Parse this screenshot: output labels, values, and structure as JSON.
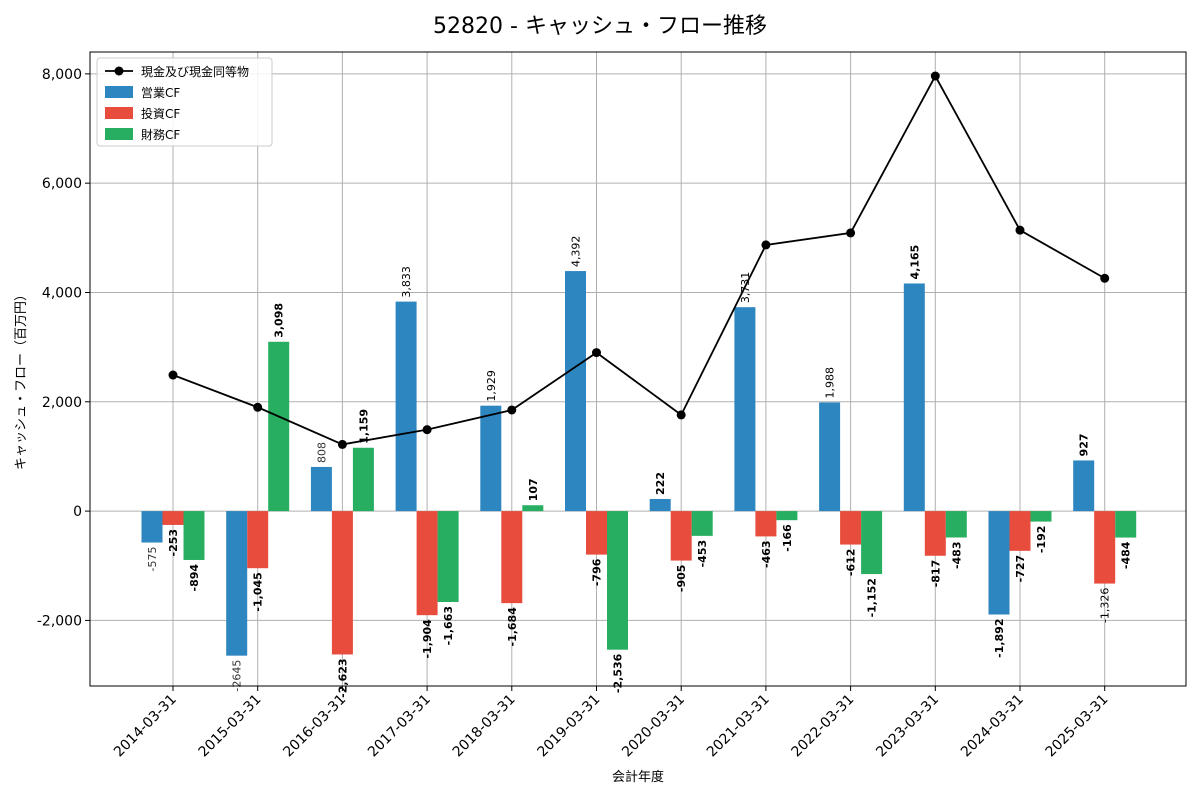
{
  "chart_data": {
    "type": "bar",
    "title": "52820 - キャッシュ・フロー推移",
    "xlabel": "会計年度",
    "ylabel": "キャッシュ・フロー（百万円）",
    "ylim": [
      -3200,
      8400
    ],
    "yticks": [
      -2000,
      0,
      2000,
      4000,
      6000,
      8000
    ],
    "ytick_labels": [
      "-2,000",
      "0",
      "2,000",
      "4,000",
      "6,000",
      "8,000"
    ],
    "grid": true,
    "legend_position": "top-left",
    "categories": [
      "2014-03-31",
      "2015-03-31",
      "2016-03-31",
      "2017-03-31",
      "2018-03-31",
      "2019-03-31",
      "2020-03-31",
      "2021-03-31",
      "2022-03-31",
      "2023-03-31",
      "2024-03-31",
      "2025-03-31"
    ],
    "series": [
      {
        "name": "営業CF",
        "kind": "bar",
        "color": "#2e86c1",
        "values": [
          -575,
          -2645,
          808,
          3833,
          1929,
          4392,
          222,
          3731,
          1988,
          4165,
          -1892,
          927
        ],
        "labels": [
          "-575",
          "-2645",
          "808",
          "3,833",
          "1,929",
          "4,392",
          "222",
          "3,731",
          "1,988",
          "4,165",
          "-1,892",
          "927"
        ],
        "label_styles": [
          "light",
          "light",
          "light",
          "normal",
          "normal",
          "normal",
          "bold",
          "normal",
          "normal",
          "bold",
          "bold",
          "bold"
        ]
      },
      {
        "name": "投資CF",
        "kind": "bar",
        "color": "#e74c3c",
        "values": [
          -253,
          -1045,
          -2623,
          -1904,
          -1684,
          -796,
          -905,
          -463,
          -612,
          -817,
          -727,
          -1326
        ],
        "labels": [
          "-253",
          "-1,045",
          "-2,623",
          "-1,904",
          "-1,684",
          "-796",
          "-905",
          "-463",
          "-612",
          "-817",
          "-727",
          "-1,326"
        ],
        "label_styles": [
          "bold",
          "bold",
          "bold",
          "bold",
          "bold",
          "bold",
          "bold",
          "bold",
          "bold",
          "bold",
          "bold",
          "normal"
        ]
      },
      {
        "name": "財務CF",
        "kind": "bar",
        "color": "#27ae60",
        "values": [
          -894,
          null,
          1159,
          -1663,
          107,
          -2536,
          -453,
          -166,
          -1152,
          -483,
          -192,
          -484
        ],
        "labels": [
          "-894",
          "3,098",
          "1,159",
          "-1,663",
          "107",
          "-2,536",
          "-453",
          "-166",
          "-1,152",
          "-483",
          "-192",
          "-484"
        ],
        "label_styles": [
          "bold",
          "bold",
          "bold",
          "bold",
          "bold",
          "bold",
          "bold",
          "bold",
          "bold",
          "bold",
          "bold",
          "bold"
        ],
        "values_full": [
          -894,
          3098,
          1159,
          -1663,
          107,
          -2536,
          -453,
          -166,
          -1152,
          -483,
          -192,
          -484
        ]
      },
      {
        "name": "現金及び現金同等物",
        "kind": "line",
        "color": "#000000",
        "values": [
          2490,
          1900,
          1220,
          1490,
          1850,
          2900,
          1760,
          4870,
          5090,
          7960,
          5140,
          4260
        ]
      }
    ]
  }
}
